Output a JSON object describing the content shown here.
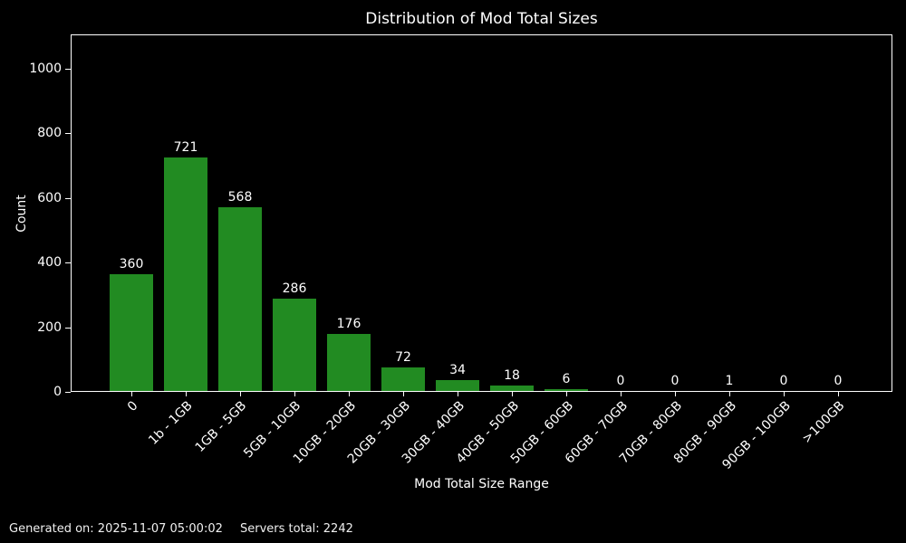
{
  "chart_data": {
    "type": "bar",
    "title": "Distribution of Mod Total Sizes",
    "xlabel": "Mod Total Size Range",
    "ylabel": "Count",
    "categories": [
      "0",
      "1b - 1GB",
      "1GB - 5GB",
      "5GB - 10GB",
      "10GB - 20GB",
      "20GB - 30GB",
      "30GB - 40GB",
      "40GB - 50GB",
      "50GB - 60GB",
      "60GB - 70GB",
      "70GB - 80GB",
      "80GB - 90GB",
      "90GB - 100GB",
      ">100GB"
    ],
    "values": [
      360,
      721,
      568,
      286,
      176,
      72,
      34,
      18,
      6,
      0,
      0,
      1,
      0,
      0
    ],
    "yticks": [
      0,
      200,
      400,
      600,
      800,
      1000
    ],
    "ylim": [
      0,
      1105
    ],
    "grid": false,
    "legend": false,
    "bar_color": "#228B22",
    "background_color": "#000000",
    "text_color": "#ffffff",
    "spine_color": "#ffffff"
  },
  "footer": {
    "generated": "Generated on: 2025-11-07 05:00:02",
    "servers": "Servers total: 2242"
  }
}
